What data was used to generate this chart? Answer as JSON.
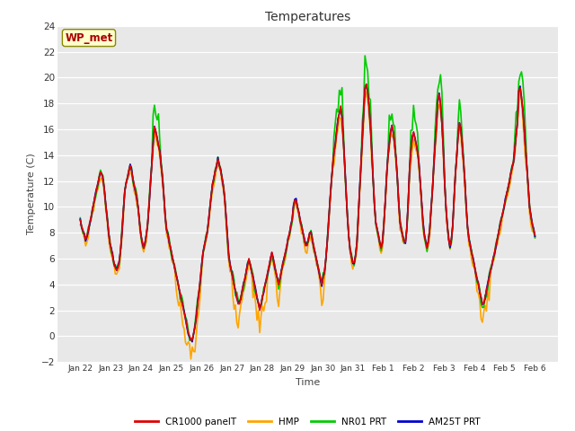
{
  "title": "Temperatures",
  "xlabel": "Time",
  "ylabel": "Temperature (C)",
  "ylim": [
    -2,
    24
  ],
  "yticks": [
    -2,
    0,
    2,
    4,
    6,
    8,
    10,
    12,
    14,
    16,
    18,
    20,
    22,
    24
  ],
  "x_tick_labels": [
    "Jan 22",
    "Jan 23",
    "Jan 24",
    "Jan 25",
    "Jan 26",
    "Jan 27",
    "Jan 28",
    "Jan 29",
    "Jan 30",
    "Jan 31",
    "Feb 1",
    "Feb 2",
    "Feb 3",
    "Feb 4",
    "Feb 5",
    "Feb 6"
  ],
  "legend_labels": [
    "CR1000 panelT",
    "HMP",
    "NR01 PRT",
    "AM25T PRT"
  ],
  "legend_colors": [
    "#dd0000",
    "#ffa500",
    "#00cc00",
    "#0000cc"
  ],
  "annotation_text": "WP_met",
  "annotation_bg": "#ffffcc",
  "annotation_fg": "#aa0000",
  "plot_bg": "#e8e8e8",
  "line_width": 1.2,
  "cr1000_values": [
    9.0,
    8.5,
    8.2,
    7.8,
    7.5,
    7.8,
    8.2,
    8.8,
    9.2,
    9.8,
    10.3,
    10.8,
    11.3,
    11.8,
    12.3,
    12.7,
    12.5,
    12.1,
    11.2,
    10.1,
    9.1,
    8.1,
    7.2,
    6.7,
    6.2,
    5.7,
    5.3,
    5.1,
    5.3,
    5.8,
    6.8,
    8.2,
    9.8,
    11.2,
    11.8,
    12.3,
    12.8,
    13.2,
    12.8,
    12.2,
    11.7,
    11.2,
    10.7,
    9.8,
    8.8,
    7.8,
    7.3,
    6.8,
    7.2,
    7.8,
    8.8,
    10.2,
    11.8,
    13.2,
    14.8,
    16.2,
    15.8,
    15.3,
    14.8,
    14.2,
    13.2,
    12.2,
    10.8,
    9.3,
    8.3,
    7.8,
    7.3,
    6.8,
    6.3,
    5.8,
    5.3,
    4.8,
    4.3,
    3.8,
    3.3,
    2.8,
    2.3,
    1.8,
    1.3,
    0.8,
    0.3,
    0.0,
    -0.3,
    -0.3,
    0.2,
    0.7,
    1.5,
    2.5,
    3.5,
    4.5,
    5.5,
    6.5,
    7.0,
    7.5,
    8.0,
    8.8,
    9.8,
    10.8,
    11.8,
    12.2,
    12.8,
    13.2,
    13.7,
    13.3,
    12.8,
    12.3,
    11.7,
    10.7,
    9.3,
    7.8,
    6.3,
    5.5,
    5.0,
    4.5,
    4.0,
    3.5,
    3.0,
    2.5,
    2.5,
    3.0,
    3.5,
    4.0,
    4.5,
    5.0,
    5.5,
    6.0,
    5.5,
    5.0,
    4.5,
    4.0,
    3.5,
    3.0,
    2.5,
    2.0,
    2.5,
    3.0,
    3.5,
    4.0,
    4.5,
    5.0,
    5.5,
    6.0,
    6.5,
    6.0,
    5.5,
    5.0,
    4.5,
    4.0,
    4.5,
    5.0,
    5.5,
    6.0,
    6.5,
    7.0,
    7.5,
    8.0,
    8.5,
    9.0,
    10.0,
    10.5,
    10.5,
    10.0,
    9.5,
    9.0,
    8.5,
    8.0,
    7.5,
    7.0,
    7.0,
    7.5,
    8.0,
    8.0,
    7.5,
    7.0,
    6.5,
    6.0,
    5.5,
    5.0,
    4.5,
    4.0,
    4.5,
    5.0,
    6.0,
    7.2,
    8.8,
    10.3,
    11.8,
    13.2,
    14.2,
    14.8,
    15.8,
    16.8,
    17.2,
    17.8,
    16.8,
    15.2,
    13.2,
    11.2,
    9.2,
    7.7,
    6.7,
    6.2,
    5.7,
    5.7,
    6.2,
    7.2,
    9.2,
    11.2,
    13.2,
    15.2,
    17.2,
    19.2,
    19.5,
    18.8,
    17.8,
    16.3,
    14.3,
    12.3,
    10.3,
    8.8,
    8.3,
    7.8,
    7.3,
    6.8,
    7.3,
    8.8,
    10.3,
    12.3,
    13.8,
    14.8,
    15.8,
    16.3,
    15.8,
    14.8,
    13.8,
    12.3,
    10.3,
    8.8,
    8.3,
    7.8,
    7.3,
    7.3,
    8.3,
    10.3,
    12.8,
    14.3,
    15.3,
    15.8,
    15.3,
    14.8,
    14.3,
    13.3,
    11.8,
    10.3,
    8.8,
    7.8,
    7.3,
    6.8,
    7.3,
    8.3,
    9.8,
    11.3,
    13.3,
    14.8,
    16.3,
    18.3,
    18.7,
    18.0,
    16.5,
    14.5,
    12.0,
    10.0,
    8.5,
    7.5,
    7.0,
    7.5,
    8.5,
    10.5,
    12.5,
    14.0,
    15.5,
    16.5,
    16.0,
    15.0,
    13.5,
    12.0,
    10.0,
    8.5,
    7.5,
    7.0,
    6.5,
    6.0,
    5.5,
    5.0,
    4.5,
    4.0,
    3.5,
    3.0,
    2.5,
    2.5,
    3.0,
    3.5,
    4.0,
    4.5,
    5.0,
    5.5,
    6.0,
    6.5,
    7.0,
    7.5,
    8.0,
    8.5,
    9.0,
    9.5,
    10.0,
    10.5,
    11.0,
    11.5,
    12.0,
    12.5,
    13.0,
    13.5,
    14.5,
    15.5,
    16.5,
    19.0,
    19.2,
    18.5,
    17.5,
    16.0,
    14.5,
    13.0,
    11.5,
    10.0,
    9.2,
    8.7,
    8.2,
    7.8
  ]
}
